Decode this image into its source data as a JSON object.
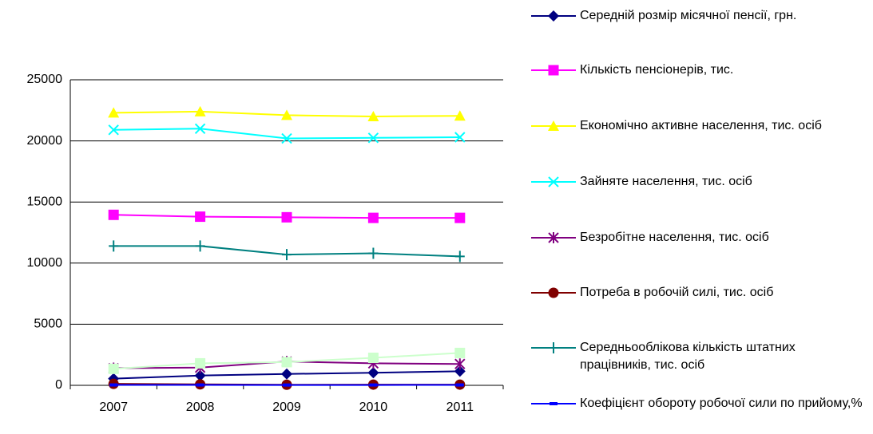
{
  "chart_data": {
    "type": "line",
    "categories": [
      "2007",
      "2008",
      "2009",
      "2010",
      "2011"
    ],
    "ylim": [
      0,
      25000
    ],
    "yticks": [
      0,
      5000,
      10000,
      15000,
      20000,
      25000
    ],
    "grid": true,
    "series": [
      {
        "name": "Середній розмір місячної пенсії, грн.",
        "color": "#000080",
        "marker": "diamond",
        "values": [
          550,
          800,
          930,
          1030,
          1150
        ]
      },
      {
        "name": "Кількість пенсіонерів, тис.",
        "color": "#ff00ff",
        "marker": "square",
        "values": [
          13950,
          13800,
          13750,
          13700,
          13700
        ]
      },
      {
        "name": "Економічно активне населення, тис. осіб",
        "color": "#ffff00",
        "marker": "triangle",
        "values": [
          22300,
          22400,
          22100,
          22000,
          22050
        ]
      },
      {
        "name": "Зайняте населення, тис. осіб",
        "color": "#00ffff",
        "marker": "x",
        "values": [
          20900,
          21000,
          20200,
          20250,
          20300
        ]
      },
      {
        "name": "Безробітне населення, тис. осіб",
        "color": "#800080",
        "marker": "star",
        "values": [
          1400,
          1450,
          1950,
          1800,
          1750
        ]
      },
      {
        "name": "Потреба в робочій силі, тис. осіб",
        "color": "#800000",
        "marker": "circle",
        "values": [
          120,
          80,
          50,
          60,
          60
        ]
      },
      {
        "name": "Середньооблікова кількість штатних працівників, тис. осіб",
        "color": "#008080",
        "marker": "plus",
        "values": [
          11400,
          11400,
          10700,
          10800,
          10550
        ]
      },
      {
        "name": "Коефіцієнт обороту робочої сили по прийому,%",
        "color": "#0000ff",
        "marker": "dash",
        "values": [
          30,
          30,
          25,
          28,
          30
        ]
      },
      {
        "color": "#ccffcc",
        "marker": "square",
        "values": [
          1350,
          1800,
          1900,
          2250,
          2650
        ]
      }
    ]
  }
}
